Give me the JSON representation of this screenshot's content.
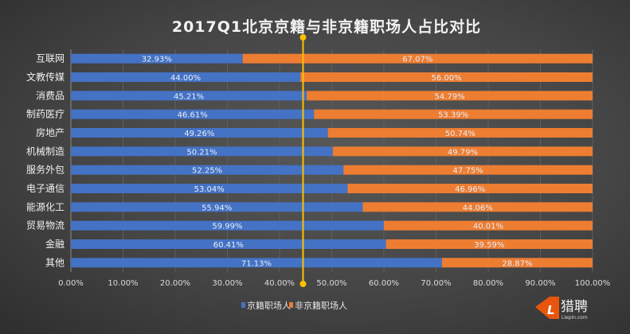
{
  "chart_data": {
    "type": "bar",
    "orientation": "horizontal",
    "stacked": true,
    "title": "2017Q1北京京籍与非京籍职场人占比对比",
    "categories": [
      "互联网",
      "文教传媒",
      "消费品",
      "制药医疗",
      "房地产",
      "机械制造",
      "服务外包",
      "电子通信",
      "能源化工",
      "贸易物流",
      "金融",
      "其他"
    ],
    "series": [
      {
        "name": "京籍职场人",
        "color": "#4472c4",
        "values": [
          32.93,
          44.0,
          45.21,
          46.61,
          49.26,
          50.21,
          52.25,
          53.04,
          55.94,
          59.99,
          60.41,
          71.13
        ]
      },
      {
        "name": "非京籍职场人",
        "color": "#ed7d31",
        "values": [
          67.07,
          56.0,
          54.79,
          53.39,
          50.74,
          49.79,
          47.75,
          46.96,
          44.06,
          40.01,
          39.59,
          28.87
        ]
      }
    ],
    "xlim": [
      0,
      100
    ],
    "xticks": [
      "0.00%",
      "10.00%",
      "20.00%",
      "30.00%",
      "40.00%",
      "50.00%",
      "60.00%",
      "70.00%",
      "80.00%",
      "90.00%",
      "100.00%"
    ],
    "reference_line": 44.5,
    "legend_position": "bottom",
    "grid": true
  },
  "logo": {
    "text": "猎聘",
    "sub": "Liepin.com",
    "color": "#e8560d"
  }
}
